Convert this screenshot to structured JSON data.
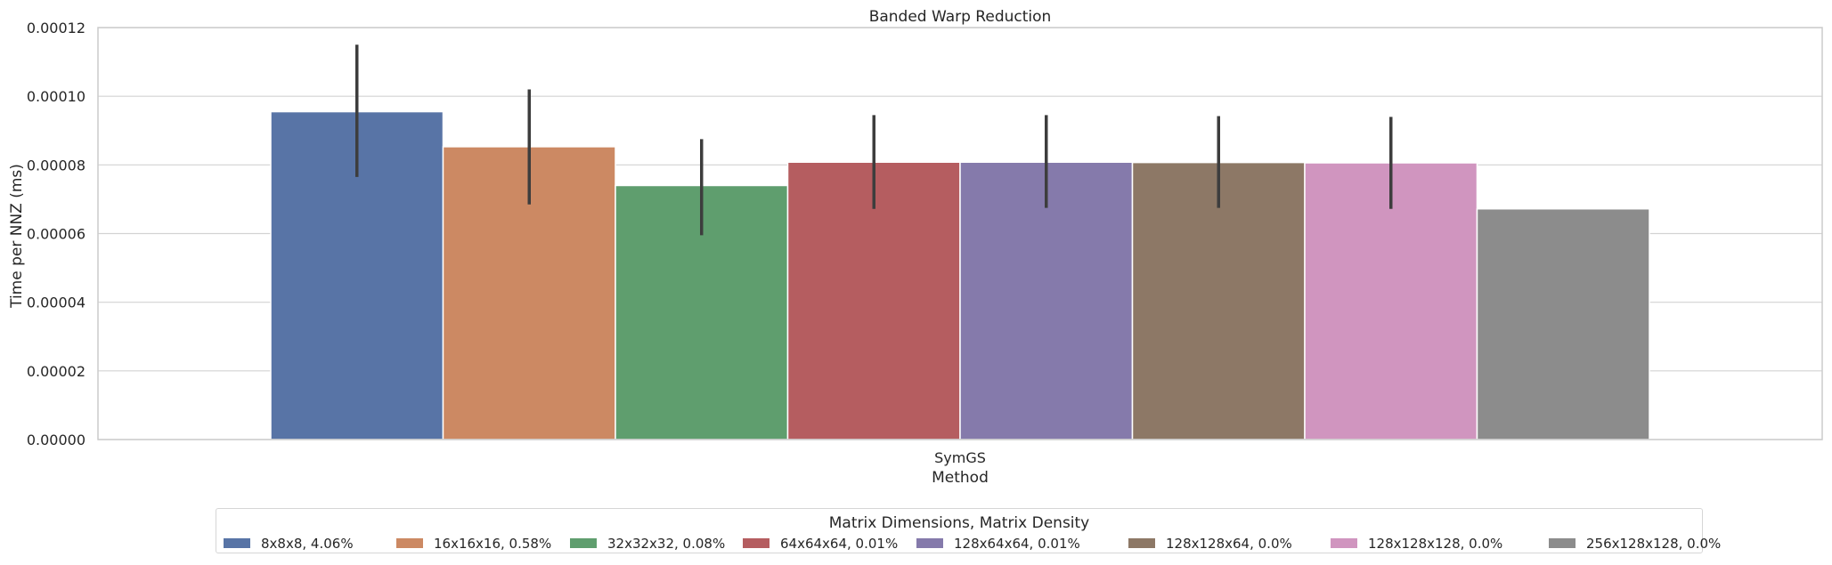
{
  "chart_data": {
    "type": "bar",
    "title": "Banded Warp Reduction",
    "xlabel": "Method",
    "ylabel": "Time per NNZ (ms)",
    "categories": [
      "SymGS"
    ],
    "ylim": [
      0,
      0.00012
    ],
    "yticks": [
      "0.00000",
      "0.00002",
      "0.00004",
      "0.00006",
      "0.00008",
      "0.00010",
      "0.00012"
    ],
    "grid": true,
    "legend_title": "Matrix Dimensions, Matrix Density",
    "legend_position": "bottom-center",
    "series": [
      {
        "name": "8x8x8, 4.06%",
        "values": [
          9.55e-05
        ],
        "err_low": [
          7.65e-05
        ],
        "err_high": [
          0.000115
        ],
        "color": "#5874a6"
      },
      {
        "name": "16x16x16, 0.58%",
        "values": [
          8.53e-05
        ],
        "err_low": [
          6.85e-05
        ],
        "err_high": [
          0.000102
        ],
        "color": "#cc8963"
      },
      {
        "name": "32x32x32, 0.08%",
        "values": [
          7.4e-05
        ],
        "err_low": [
          5.95e-05
        ],
        "err_high": [
          8.75e-05
        ],
        "color": "#5f9e6e"
      },
      {
        "name": "64x64x64, 0.01%",
        "values": [
          8.08e-05
        ],
        "err_low": [
          6.72e-05
        ],
        "err_high": [
          9.45e-05
        ],
        "color": "#b55d60"
      },
      {
        "name": "128x64x64, 0.01%",
        "values": [
          8.08e-05
        ],
        "err_low": [
          6.75e-05
        ],
        "err_high": [
          9.45e-05
        ],
        "color": "#857aab"
      },
      {
        "name": "128x128x64, 0.0%",
        "values": [
          8.07e-05
        ],
        "err_low": [
          6.75e-05
        ],
        "err_high": [
          9.42e-05
        ],
        "color": "#8d7866"
      },
      {
        "name": "128x128x128, 0.0%",
        "values": [
          8.06e-05
        ],
        "err_low": [
          6.72e-05
        ],
        "err_high": [
          9.4e-05
        ],
        "color": "#d095bf"
      },
      {
        "name": "256x128x128, 0.0%",
        "values": [
          6.72e-05
        ],
        "err_low": null,
        "err_high": null,
        "color": "#8c8c8c"
      }
    ]
  }
}
